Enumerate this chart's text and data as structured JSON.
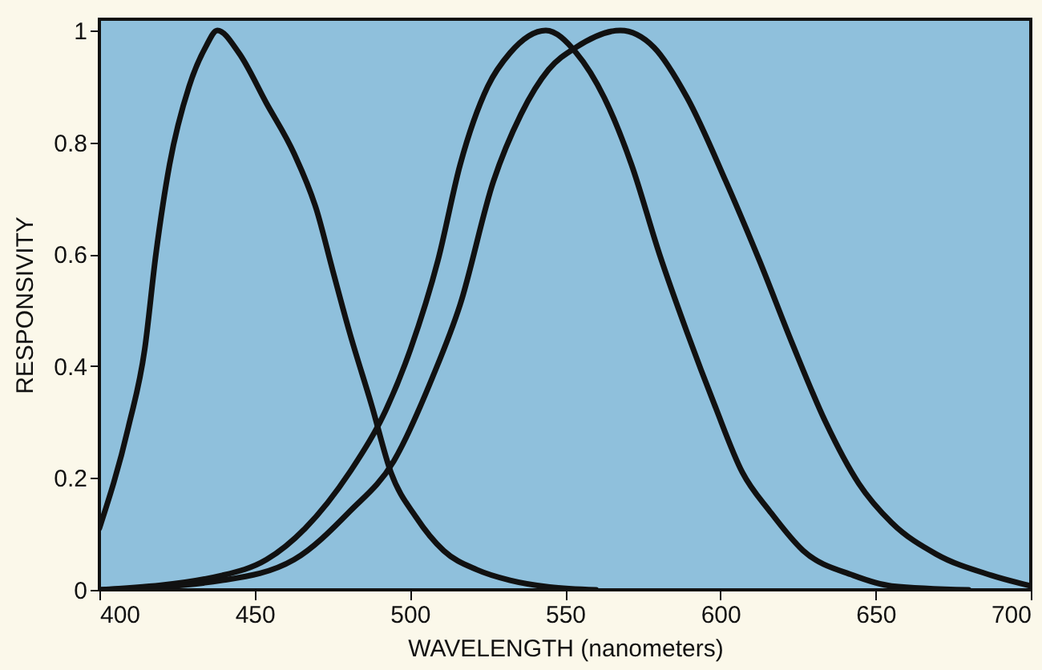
{
  "chart_data": {
    "type": "line",
    "xlabel": "WAVELENGTH (nanometers)",
    "ylabel": "RESPONSIVITY",
    "xlim": [
      400,
      700
    ],
    "ylim": [
      0,
      1.02
    ],
    "xticks": [
      400,
      450,
      500,
      550,
      600,
      650,
      700
    ],
    "yticks": [
      0,
      0.2,
      0.4,
      0.6,
      0.8,
      1
    ],
    "series": [
      {
        "color": "#111111",
        "x": [
          400,
          409.3,
          414.6,
          418.2,
          422.6,
          428.9,
          434.2,
          438,
          444.9,
          453.8,
          462.7,
          469.9,
          475.2,
          480.6,
          487.7,
          493.9,
          502,
          510.9,
          521.6,
          532.3,
          545,
          560
        ],
        "values": [
          0.11,
          0.29,
          0.43,
          0.6,
          0.76,
          0.9,
          0.97,
          1.0,
          0.96,
          0.87,
          0.78,
          0.68,
          0.57,
          0.46,
          0.33,
          0.21,
          0.13,
          0.07,
          0.036,
          0.017,
          0.005,
          0
        ]
      },
      {
        "color": "#111111",
        "x": [
          400,
          439.6,
          453.8,
          466.3,
          480.6,
          491.3,
          500.2,
          509.1,
          516.2,
          525.1,
          532.3,
          543.8,
          553.6,
          562.6,
          571.4,
          580.4,
          589.3,
          598.2,
          607.1,
          616,
          626.7,
          642.8,
          655.2,
          680
        ],
        "values": [
          0,
          0.026,
          0.054,
          0.11,
          0.21,
          0.31,
          0.43,
          0.59,
          0.76,
          0.9,
          0.96,
          1.0,
          0.96,
          0.88,
          0.76,
          0.6,
          0.46,
          0.33,
          0.21,
          0.14,
          0.07,
          0.026,
          0.007,
          0
        ]
      },
      {
        "color": "#111111",
        "x": [
          400,
          439.6,
          462.7,
          480.6,
          494.8,
          507.3,
          516.2,
          526.9,
          535.8,
          544.7,
          553.6,
          567.8,
          578.6,
          589.3,
          601.8,
          612.5,
          623.2,
          633.9,
          644.6,
          655.2,
          669.5,
          687.3,
          700
        ],
        "values": [
          0,
          0.017,
          0.054,
          0.14,
          0.23,
          0.38,
          0.51,
          0.73,
          0.85,
          0.93,
          0.97,
          1.0,
          0.97,
          0.88,
          0.73,
          0.59,
          0.44,
          0.3,
          0.19,
          0.12,
          0.064,
          0.026,
          0.007
        ]
      }
    ]
  }
}
